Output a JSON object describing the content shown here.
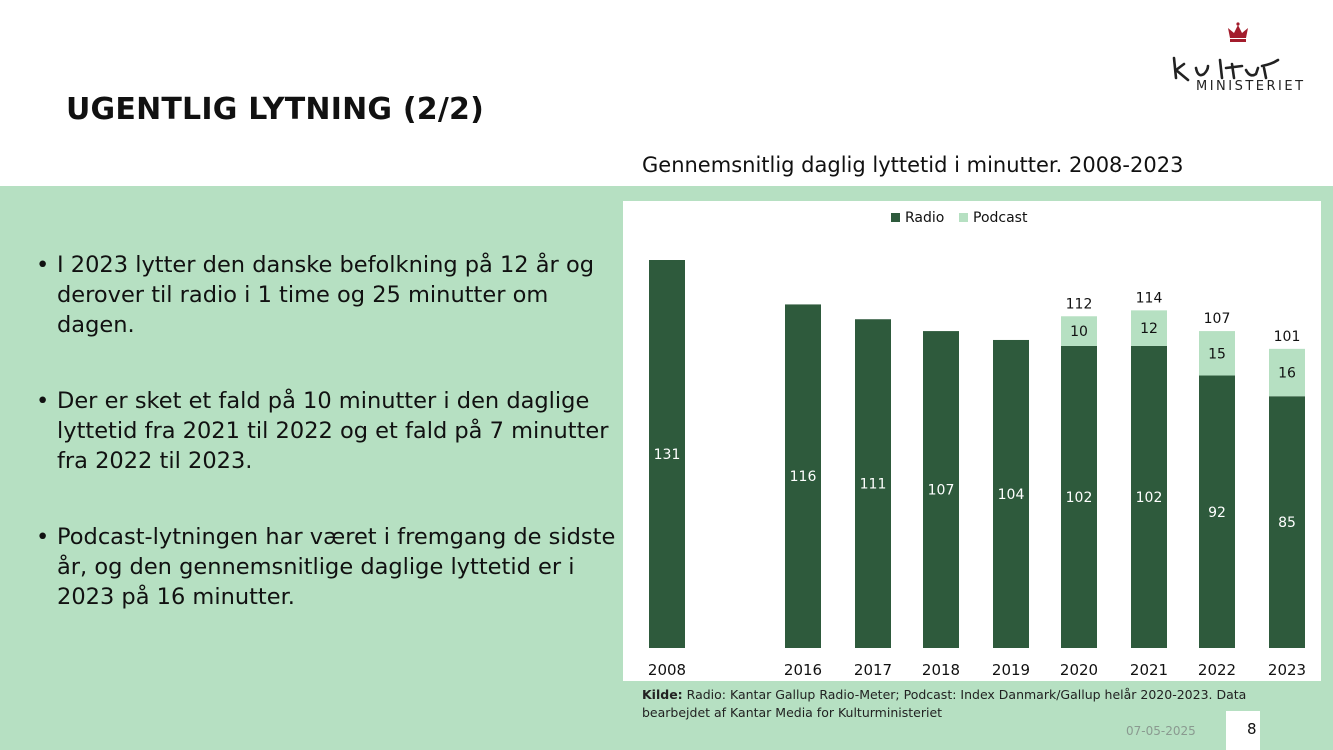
{
  "slide": {
    "title": "UGENTLIG LYTNING (2/2)",
    "logo_text": "MINISTERIET",
    "date": "07-05-2025",
    "page": "8"
  },
  "bullets": [
    "I 2023 lytter den danske befolkning på 12 år og derover til radio i 1 time og 25 minutter om dagen.",
    "Der er sket et fald på 10 minutter i den daglige lyttetid fra 2021 til 2022 og et fald på 7 minutter fra 2022 til 2023.",
    "Podcast-lytningen har været i fremgang de sidste år, og den gennemsnitlige daglige lyttetid er i 2023 på 16 minutter."
  ],
  "source": {
    "label": "Kilde:",
    "text": "Radio: Kantar Gallup Radio-Meter; Podcast: Index Danmark/Gallup helår 2020-2023. Data bearbejdet af Kantar Media for Kulturministeriet"
  },
  "chart_data": {
    "type": "bar",
    "stacked": true,
    "title": "Gennemsnitlig daglig lyttetid i minutter. 2008-2023",
    "categories": [
      "2008",
      "2016",
      "2017",
      "2018",
      "2019",
      "2020",
      "2021",
      "2022",
      "2023"
    ],
    "series": [
      {
        "name": "Radio",
        "color": "#2e5a3c",
        "values": [
          131,
          116,
          111,
          107,
          104,
          102,
          102,
          92,
          85
        ]
      },
      {
        "name": "Podcast",
        "color": "#b6e0c2",
        "values": [
          0,
          0,
          0,
          0,
          0,
          10,
          12,
          15,
          16
        ]
      }
    ],
    "totals": [
      null,
      null,
      null,
      null,
      null,
      112,
      114,
      107,
      101
    ],
    "ylim": [
      0,
      135
    ],
    "legend": "top-center",
    "grid": false
  }
}
